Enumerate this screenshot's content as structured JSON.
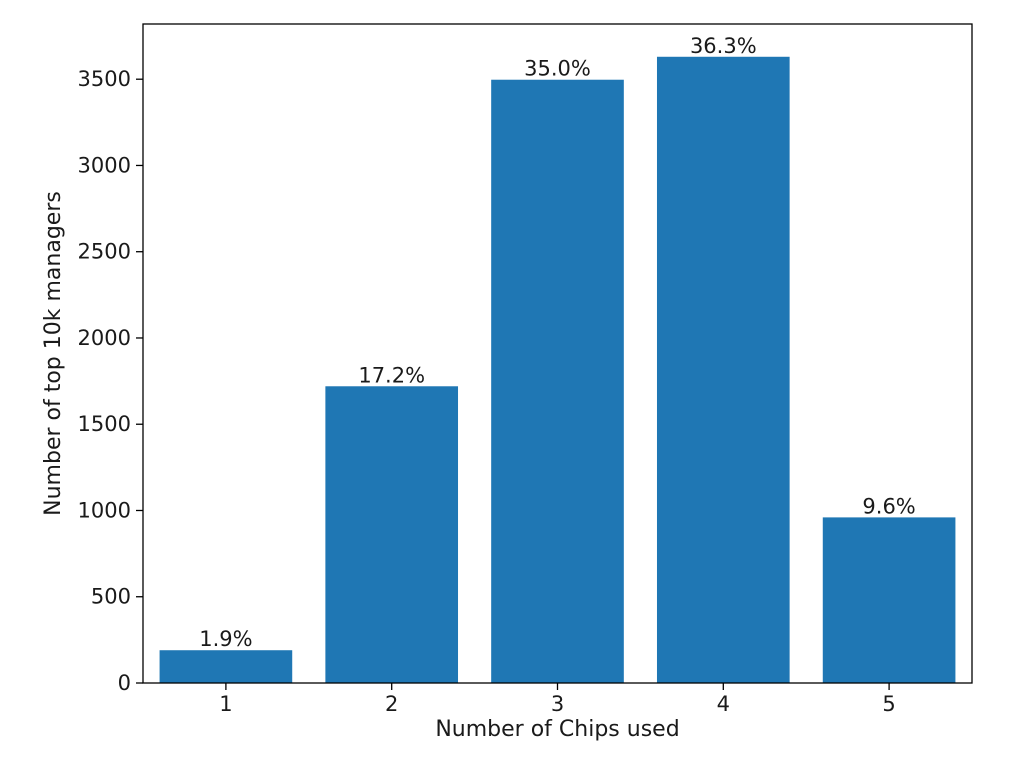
{
  "chart_data": {
    "type": "bar",
    "categories": [
      "1",
      "2",
      "3",
      "4",
      "5"
    ],
    "values": [
      190,
      1720,
      3497,
      3630,
      960
    ],
    "data_labels": [
      "1.9%",
      "17.2%",
      "35.0%",
      "36.3%",
      "9.6%"
    ],
    "title": "",
    "xlabel": "Number of Chips used",
    "ylabel": "Number of top 10k managers",
    "ylim": [
      0,
      3820
    ],
    "yticks": [
      0,
      500,
      1000,
      1500,
      2000,
      2500,
      3000,
      3500
    ],
    "grid": false,
    "bar_color": "#1f77b4"
  }
}
